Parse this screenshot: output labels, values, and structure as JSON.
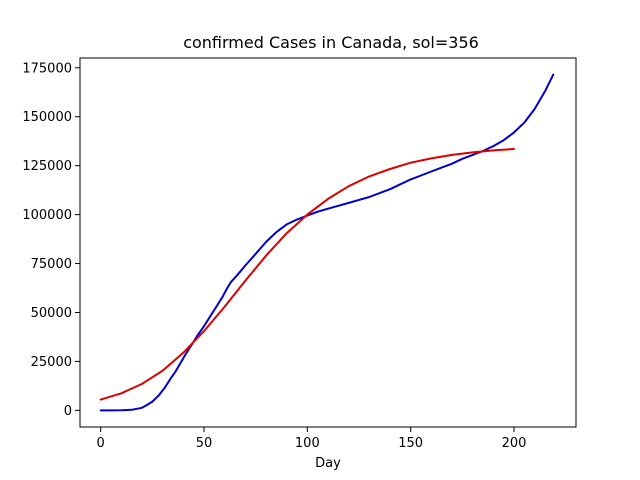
{
  "chart_data": {
    "type": "line",
    "title": "confirmed Cases in Canada, sol=356",
    "xlabel": "Day",
    "ylabel": "",
    "xlim": [
      -10,
      230
    ],
    "ylim": [
      -8500,
      180000
    ],
    "x_ticks": [
      0,
      50,
      100,
      150,
      200
    ],
    "y_ticks": [
      0,
      25000,
      50000,
      75000,
      100000,
      125000,
      150000,
      175000
    ],
    "grid": false,
    "series": [
      {
        "color": "#0000cc",
        "x": [
          0,
          5,
          10,
          15,
          20,
          22,
          25,
          28,
          31,
          34,
          36,
          38,
          41,
          44,
          47,
          50,
          53,
          56,
          59,
          61,
          63,
          66,
          70,
          75,
          80,
          85,
          90,
          95,
          100,
          105,
          110,
          115,
          120,
          125,
          130,
          135,
          140,
          145,
          150,
          155,
          160,
          165,
          170,
          175,
          180,
          185,
          190,
          195,
          200,
          205,
          210,
          215,
          219
        ],
        "y": [
          0,
          0,
          50,
          300,
          1300,
          2500,
          4500,
          7500,
          11500,
          16500,
          19500,
          23000,
          28500,
          33500,
          38500,
          43000,
          48000,
          53000,
          58000,
          62000,
          65500,
          69000,
          74000,
          80000,
          86000,
          91000,
          95000,
          97500,
          99500,
          101500,
          103000,
          104500,
          106000,
          107500,
          109000,
          111000,
          113000,
          115500,
          118000,
          120000,
          122000,
          124000,
          126000,
          128500,
          130500,
          132500,
          135000,
          138000,
          142000,
          147000,
          154000,
          163000,
          171500
        ]
      },
      {
        "color": "#dd0000",
        "x": [
          0,
          10,
          20,
          30,
          40,
          50,
          60,
          70,
          80,
          90,
          100,
          110,
          120,
          130,
          140,
          150,
          160,
          170,
          180,
          190,
          200
        ],
        "y": [
          5500,
          8700,
          13500,
          20300,
          29400,
          40500,
          53000,
          66200,
          79000,
          90500,
          100000,
          108000,
          114500,
          119500,
          123300,
          126500,
          128700,
          130500,
          131800,
          132800,
          133500
        ]
      }
    ]
  }
}
